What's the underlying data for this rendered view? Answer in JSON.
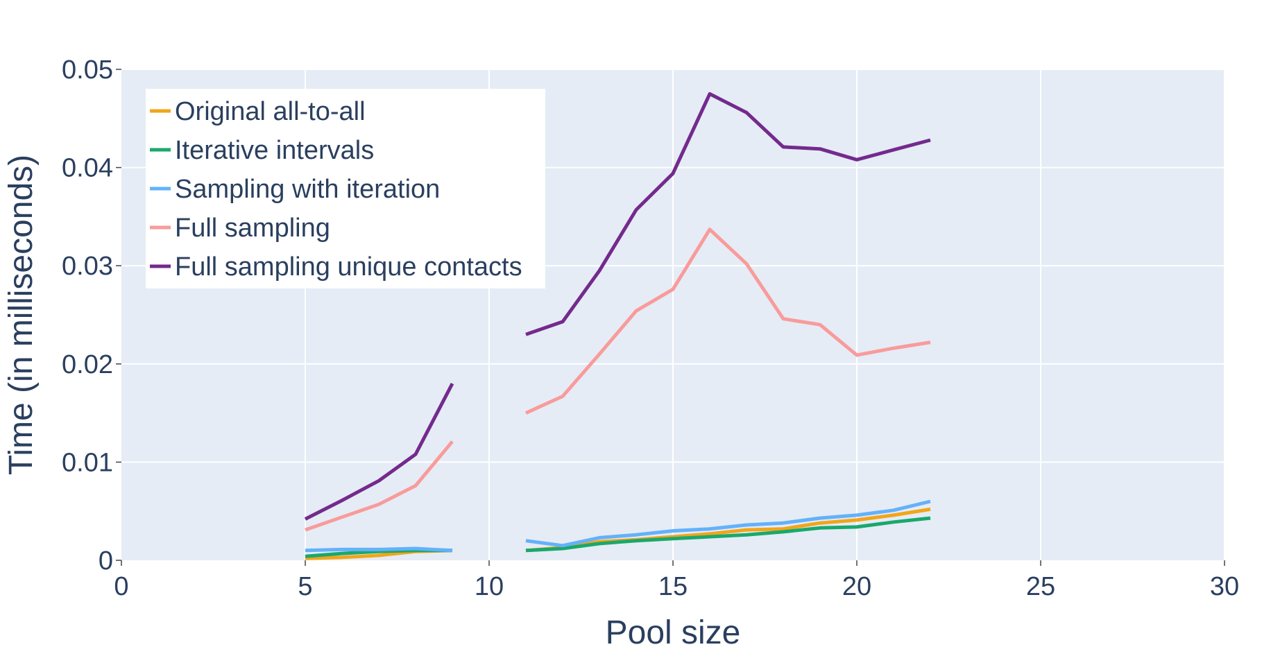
{
  "chart_data": {
    "type": "line",
    "title": "",
    "xlabel": "Pool size",
    "ylabel": "Time (in milliseconds)",
    "xlim": [
      0,
      30
    ],
    "ylim": [
      0,
      0.05
    ],
    "x_ticks": [
      0,
      5,
      10,
      15,
      20,
      25,
      30
    ],
    "x_tick_labels": [
      "0",
      "5",
      "10",
      "15",
      "20",
      "25",
      "30"
    ],
    "y_ticks": [
      0,
      0.01,
      0.02,
      0.03,
      0.04,
      0.05
    ],
    "y_tick_labels": [
      "0",
      "0.01",
      "0.02",
      "0.03",
      "0.04",
      "0.05"
    ],
    "grid": true,
    "legend_position": "top-left",
    "plot_background": "#e5ecf6",
    "series": [
      {
        "name": "Original all-to-all",
        "color": "#f2a51a",
        "segments": [
          [
            [
              5,
              0.0002
            ],
            [
              6,
              0.0003
            ],
            [
              7,
              0.0005
            ],
            [
              8,
              0.0009
            ],
            [
              9,
              0.001
            ]
          ],
          [
            [
              11,
              0.001
            ],
            [
              12,
              0.0013
            ],
            [
              13,
              0.0019
            ],
            [
              14,
              0.0021
            ],
            [
              15,
              0.0024
            ],
            [
              16,
              0.0027
            ],
            [
              17,
              0.0031
            ],
            [
              18,
              0.0032
            ],
            [
              19,
              0.0038
            ],
            [
              20,
              0.0041
            ],
            [
              21,
              0.0046
            ],
            [
              22,
              0.0052
            ]
          ]
        ]
      },
      {
        "name": "Iterative intervals",
        "color": "#1aa86c",
        "segments": [
          [
            [
              5,
              0.0004
            ],
            [
              6,
              0.0007
            ],
            [
              7,
              0.0009
            ],
            [
              8,
              0.001
            ],
            [
              9,
              0.001
            ]
          ],
          [
            [
              11,
              0.001
            ],
            [
              12,
              0.0012
            ],
            [
              13,
              0.0017
            ],
            [
              14,
              0.002
            ],
            [
              15,
              0.0022
            ],
            [
              16,
              0.0024
            ],
            [
              17,
              0.0026
            ],
            [
              18,
              0.0029
            ],
            [
              19,
              0.0033
            ],
            [
              20,
              0.0034
            ],
            [
              21,
              0.0039
            ],
            [
              22,
              0.0043
            ]
          ]
        ]
      },
      {
        "name": "Sampling with iteration",
        "color": "#63b1fa",
        "segments": [
          [
            [
              5,
              0.001
            ],
            [
              6,
              0.0011
            ],
            [
              7,
              0.0011
            ],
            [
              8,
              0.0012
            ],
            [
              9,
              0.001
            ]
          ],
          [
            [
              11,
              0.002
            ],
            [
              12,
              0.0015
            ],
            [
              13,
              0.0023
            ],
            [
              14,
              0.0026
            ],
            [
              15,
              0.003
            ],
            [
              16,
              0.0032
            ],
            [
              17,
              0.0036
            ],
            [
              18,
              0.0038
            ],
            [
              19,
              0.0043
            ],
            [
              20,
              0.0046
            ],
            [
              21,
              0.0051
            ],
            [
              22,
              0.006
            ]
          ]
        ]
      },
      {
        "name": "Full sampling",
        "color": "#f99b9b",
        "segments": [
          [
            [
              5,
              0.0031
            ],
            [
              6,
              0.0044
            ],
            [
              7,
              0.0057
            ],
            [
              8,
              0.0076
            ],
            [
              9,
              0.0121
            ]
          ],
          [
            [
              11,
              0.015
            ],
            [
              12,
              0.0167
            ],
            [
              13,
              0.021
            ],
            [
              14,
              0.0254
            ],
            [
              15,
              0.0276
            ],
            [
              16,
              0.0337
            ],
            [
              17,
              0.0302
            ],
            [
              18,
              0.0246
            ],
            [
              19,
              0.024
            ],
            [
              20,
              0.0209
            ],
            [
              21,
              0.0216
            ],
            [
              22,
              0.0222
            ]
          ]
        ]
      },
      {
        "name": "Full sampling unique contacts",
        "color": "#742a8c",
        "segments": [
          [
            [
              5,
              0.0042
            ],
            [
              6,
              0.0061
            ],
            [
              7,
              0.0081
            ],
            [
              8,
              0.0108
            ],
            [
              9,
              0.018
            ]
          ],
          [
            [
              11,
              0.023
            ],
            [
              12,
              0.0243
            ],
            [
              13,
              0.0295
            ],
            [
              14,
              0.0357
            ],
            [
              15,
              0.0394
            ],
            [
              16,
              0.0475
            ],
            [
              17,
              0.0456
            ],
            [
              18,
              0.0421
            ],
            [
              19,
              0.0419
            ],
            [
              20,
              0.0408
            ],
            [
              21,
              0.0418
            ],
            [
              22,
              0.0428
            ]
          ]
        ]
      }
    ]
  }
}
